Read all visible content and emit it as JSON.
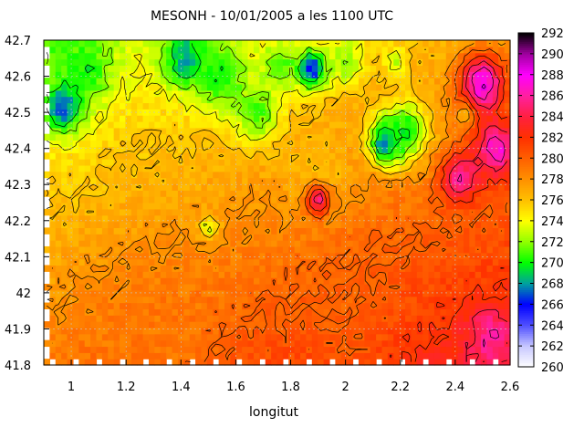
{
  "chart_data": {
    "type": "heatmap",
    "title": "MESONH - 10/01/2005 a les 1100 UTC",
    "xlabel": "longitut",
    "ylabel": "",
    "xlim": [
      0.9,
      2.6
    ],
    "ylim": [
      41.8,
      42.7
    ],
    "x_ticks": [
      "1",
      "1.2",
      "1.4",
      "1.6",
      "1.8",
      "2",
      "2.2",
      "2.4",
      "2.6"
    ],
    "x_tick_values": [
      1.0,
      1.2,
      1.4,
      1.6,
      1.8,
      2.0,
      2.2,
      2.4,
      2.6
    ],
    "y_ticks": [
      "41.8",
      "41.9",
      "42",
      "42.1",
      "42.2",
      "42.3",
      "42.4",
      "42.5",
      "42.6",
      "42.7"
    ],
    "y_tick_values": [
      41.8,
      41.9,
      42.0,
      42.1,
      42.2,
      42.3,
      42.4,
      42.5,
      42.6,
      42.7
    ],
    "colorbar": {
      "min": 260,
      "max": 292,
      "ticks": [
        "260",
        "262",
        "264",
        "266",
        "268",
        "270",
        "272",
        "274",
        "276",
        "278",
        "280",
        "282",
        "284",
        "286",
        "288",
        "290",
        "292"
      ],
      "tick_values": [
        260,
        262,
        264,
        266,
        268,
        270,
        272,
        274,
        276,
        278,
        280,
        282,
        284,
        286,
        288,
        290,
        292
      ],
      "stops": [
        {
          "v": 260,
          "color": "#ffffff"
        },
        {
          "v": 262,
          "color": "#c8c8ff"
        },
        {
          "v": 264,
          "color": "#5050ff"
        },
        {
          "v": 266,
          "color": "#0000ff"
        },
        {
          "v": 268,
          "color": "#00a0a0"
        },
        {
          "v": 270,
          "color": "#00ff00"
        },
        {
          "v": 272,
          "color": "#90ff00"
        },
        {
          "v": 274,
          "color": "#ffff00"
        },
        {
          "v": 276,
          "color": "#ffc000"
        },
        {
          "v": 278,
          "color": "#ff9000"
        },
        {
          "v": 280,
          "color": "#ff6000"
        },
        {
          "v": 282,
          "color": "#ff3000"
        },
        {
          "v": 284,
          "color": "#ff2040"
        },
        {
          "v": 286,
          "color": "#ff20a0"
        },
        {
          "v": 288,
          "color": "#ff00ff"
        },
        {
          "v": 290,
          "color": "#a000a0"
        },
        {
          "v": 292,
          "color": "#000000"
        }
      ]
    },
    "field_features": [
      {
        "lon": 0.97,
        "lat": 42.52,
        "value": 266,
        "spread": 0.05
      },
      {
        "lon": 1.05,
        "lat": 42.62,
        "value": 270,
        "spread": 0.07
      },
      {
        "lon": 0.95,
        "lat": 42.65,
        "value": 271,
        "spread": 0.05
      },
      {
        "lon": 1.42,
        "lat": 42.65,
        "value": 268,
        "spread": 0.06
      },
      {
        "lon": 1.55,
        "lat": 42.6,
        "value": 270,
        "spread": 0.07
      },
      {
        "lon": 1.68,
        "lat": 42.5,
        "value": 271,
        "spread": 0.06
      },
      {
        "lon": 1.76,
        "lat": 42.63,
        "value": 271,
        "spread": 0.05
      },
      {
        "lon": 1.88,
        "lat": 42.62,
        "value": 266,
        "spread": 0.04
      },
      {
        "lon": 2.0,
        "lat": 42.64,
        "value": 272,
        "spread": 0.05
      },
      {
        "lon": 2.15,
        "lat": 42.42,
        "value": 266,
        "spread": 0.045
      },
      {
        "lon": 2.22,
        "lat": 42.45,
        "value": 270,
        "spread": 0.06
      },
      {
        "lon": 2.18,
        "lat": 42.64,
        "value": 273,
        "spread": 0.03
      },
      {
        "lon": 2.45,
        "lat": 42.5,
        "value": 273,
        "spread": 0.025
      },
      {
        "lon": 1.5,
        "lat": 42.18,
        "value": 273,
        "spread": 0.025
      },
      {
        "lon": 1.22,
        "lat": 42.4,
        "value": 276,
        "spread": 0.04
      },
      {
        "lon": 1.9,
        "lat": 42.33,
        "value": 276,
        "spread": 0.08
      },
      {
        "lon": 2.5,
        "lat": 42.58,
        "value": 288,
        "spread": 0.06
      },
      {
        "lon": 2.55,
        "lat": 42.4,
        "value": 287,
        "spread": 0.06
      },
      {
        "lon": 2.42,
        "lat": 42.32,
        "value": 286,
        "spread": 0.05
      },
      {
        "lon": 1.9,
        "lat": 42.26,
        "value": 286,
        "spread": 0.03
      },
      {
        "lon": 2.53,
        "lat": 41.88,
        "value": 286,
        "spread": 0.06
      },
      {
        "lon": 2.0,
        "lat": 41.95,
        "value": 280,
        "spread": 0.12
      },
      {
        "lon": 1.3,
        "lat": 41.9,
        "value": 279,
        "spread": 0.15
      }
    ]
  }
}
